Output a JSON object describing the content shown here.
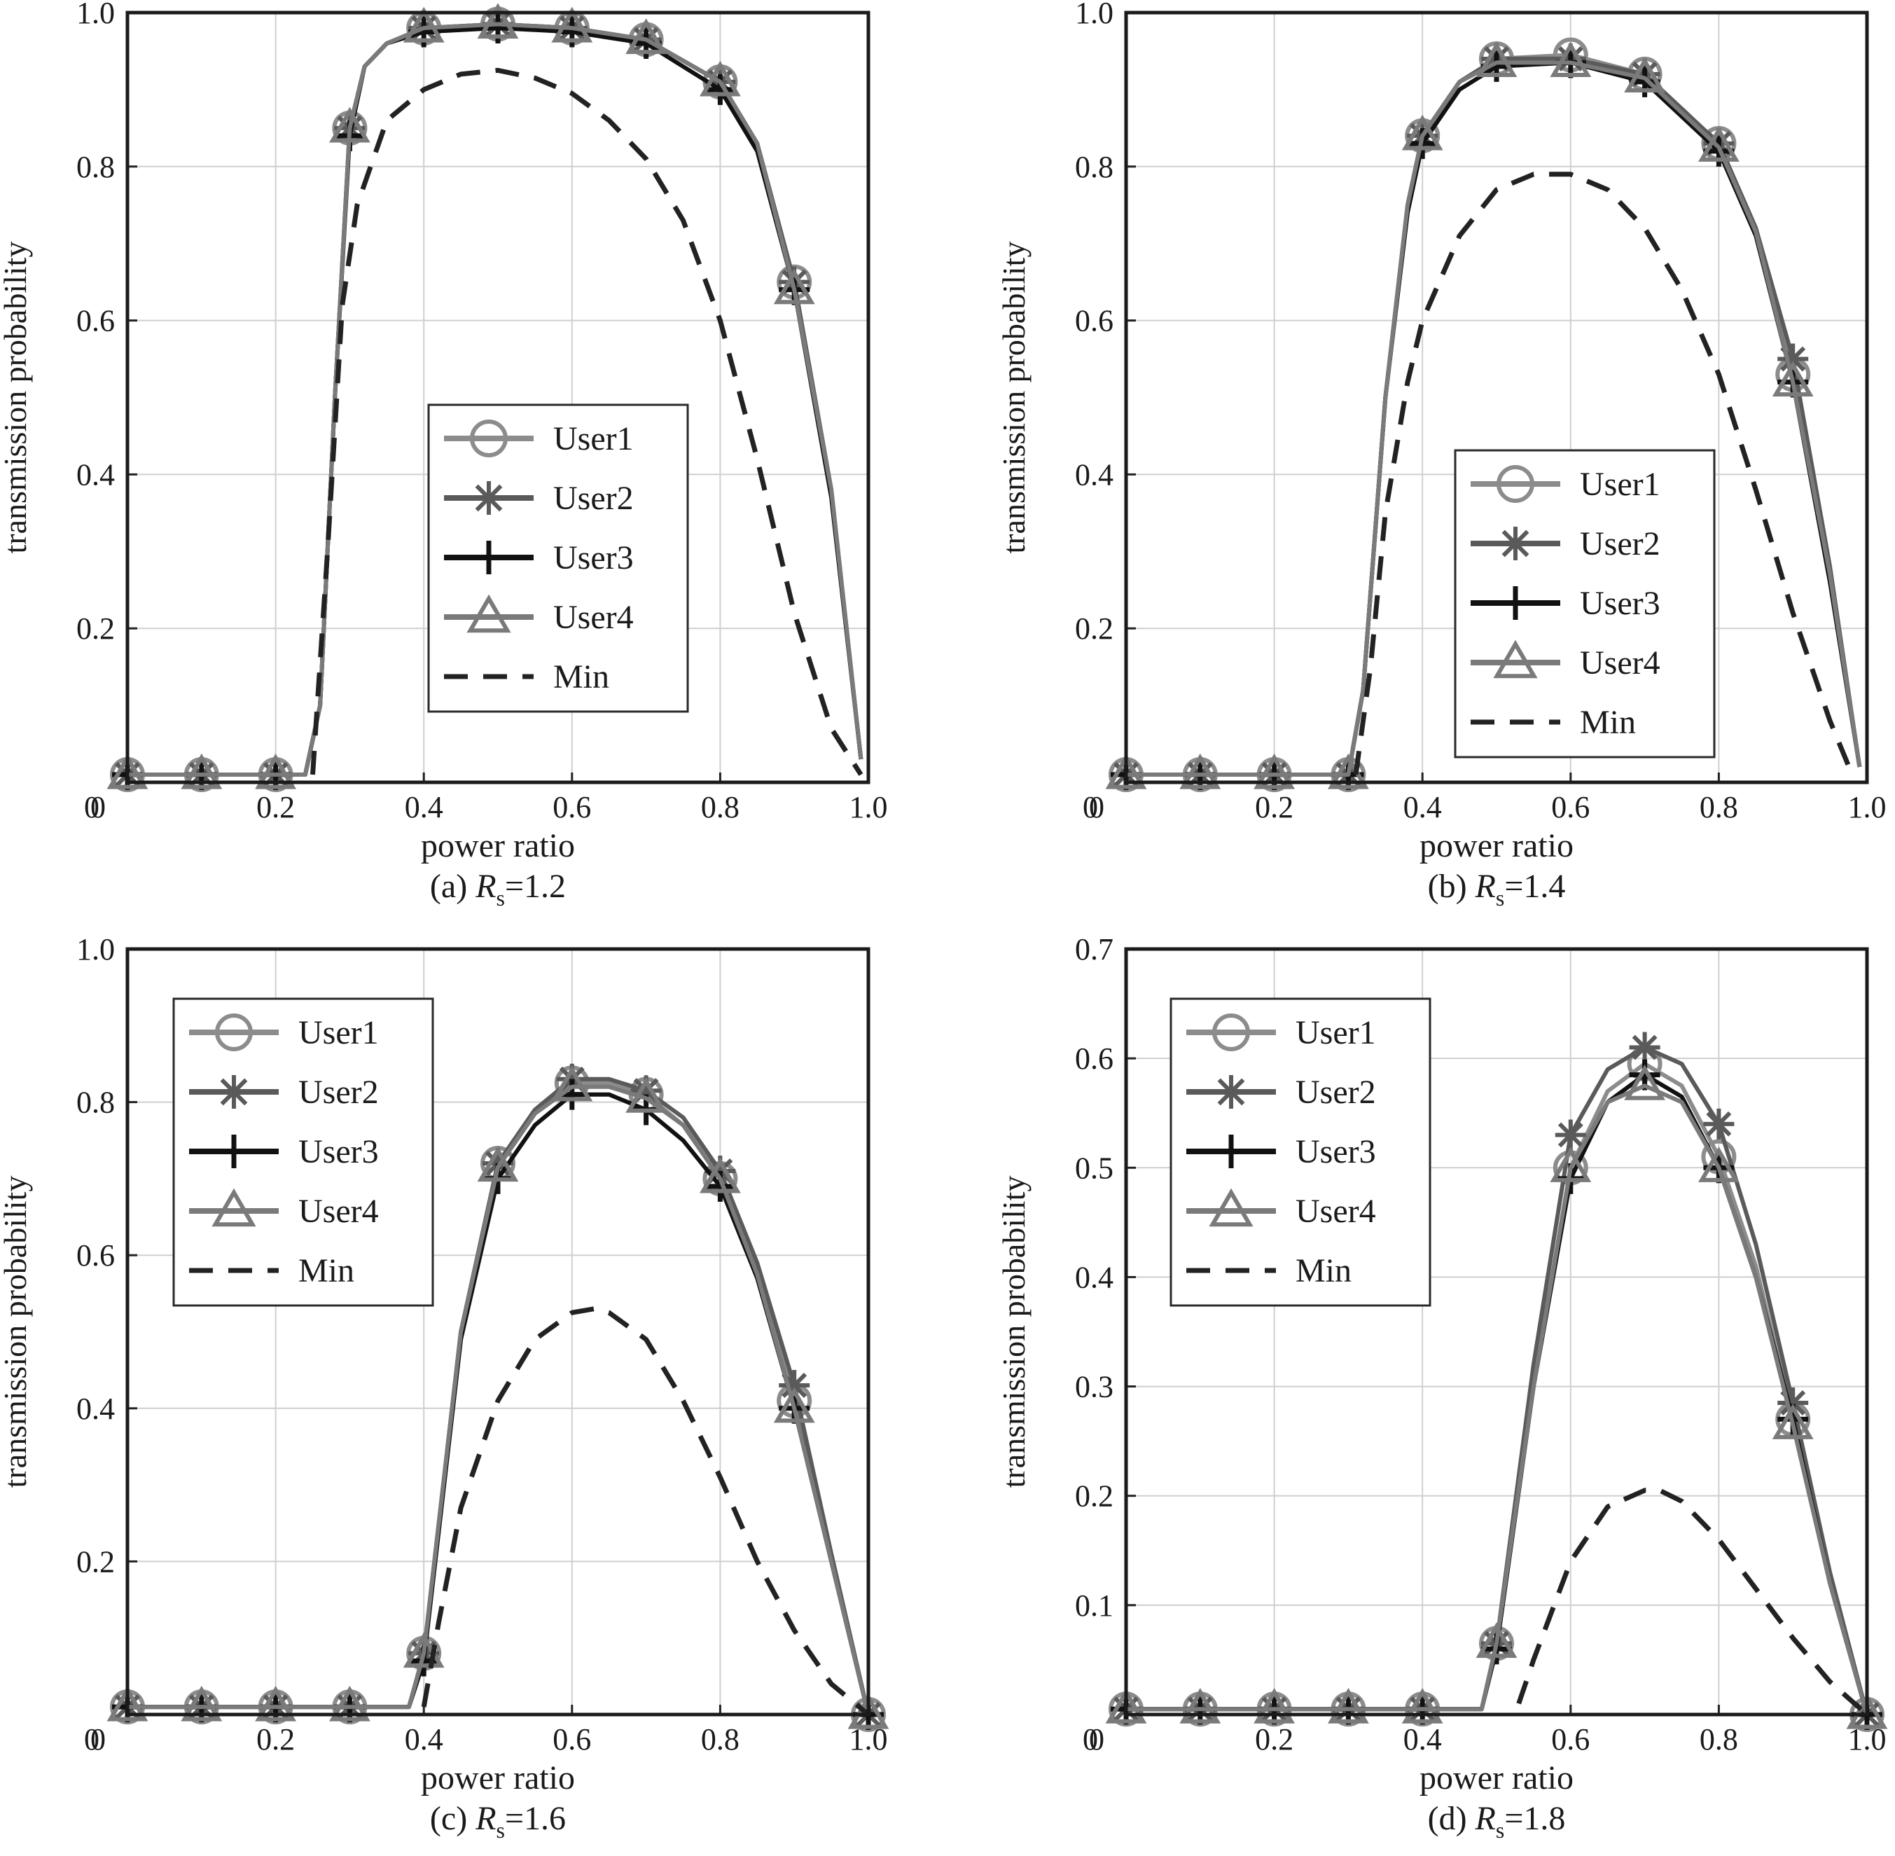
{
  "chart_data": [
    {
      "type": "line",
      "caption_prefix": "(a) ",
      "caption_var": "R",
      "caption_sub": "s",
      "caption_value": "=1.2",
      "xlabel": "power ratio",
      "ylabel": "transmission probability",
      "xlim": [
        0,
        1
      ],
      "ylim": [
        0,
        1
      ],
      "xticks": [
        "0",
        "0.2",
        "0.4",
        "0.6",
        "0.8",
        "1.0"
      ],
      "yticks": [
        "0",
        "0.2",
        "0.4",
        "0.6",
        "0.8",
        "1.0"
      ],
      "grid": true,
      "legend_position": "center",
      "x": [
        0,
        0.1,
        0.2,
        0.24,
        0.26,
        0.28,
        0.3,
        0.32,
        0.35,
        0.4,
        0.5,
        0.6,
        0.7,
        0.8,
        0.85,
        0.9,
        0.95,
        0.99
      ],
      "series": [
        {
          "name": "User1",
          "marker": "circle",
          "color": "#8c8c8c",
          "values": [
            0.01,
            0.01,
            0.01,
            0.01,
            0.1,
            0.5,
            0.85,
            0.93,
            0.96,
            0.98,
            0.985,
            0.98,
            0.965,
            0.91,
            0.83,
            0.65,
            0.38,
            0.03
          ]
        },
        {
          "name": "User2",
          "marker": "star",
          "color": "#5a5a5a",
          "values": [
            0.01,
            0.01,
            0.01,
            0.01,
            0.1,
            0.5,
            0.85,
            0.93,
            0.96,
            0.98,
            0.985,
            0.98,
            0.965,
            0.91,
            0.83,
            0.65,
            0.38,
            0.03
          ]
        },
        {
          "name": "User3",
          "marker": "plus",
          "color": "#111111",
          "values": [
            0.01,
            0.01,
            0.01,
            0.01,
            0.1,
            0.5,
            0.84,
            0.93,
            0.96,
            0.975,
            0.98,
            0.975,
            0.96,
            0.9,
            0.82,
            0.64,
            0.37,
            0.03
          ]
        },
        {
          "name": "User4",
          "marker": "triangle",
          "color": "#7a7a7a",
          "values": [
            0.01,
            0.01,
            0.01,
            0.01,
            0.1,
            0.5,
            0.85,
            0.93,
            0.96,
            0.98,
            0.985,
            0.98,
            0.965,
            0.91,
            0.83,
            0.64,
            0.38,
            0.03
          ]
        },
        {
          "name": "Min",
          "marker": "none",
          "dashed": true,
          "color": "#222222",
          "x": [
            0.25,
            0.27,
            0.29,
            0.31,
            0.35,
            0.4,
            0.45,
            0.5,
            0.55,
            0.6,
            0.65,
            0.7,
            0.75,
            0.8,
            0.85,
            0.9,
            0.95,
            0.99
          ],
          "values": [
            0.01,
            0.3,
            0.62,
            0.75,
            0.86,
            0.9,
            0.92,
            0.925,
            0.915,
            0.895,
            0.86,
            0.81,
            0.73,
            0.6,
            0.42,
            0.22,
            0.07,
            0.01
          ]
        }
      ]
    },
    {
      "type": "line",
      "caption_prefix": "(b) ",
      "caption_var": "R",
      "caption_sub": "s",
      "caption_value": "=1.4",
      "xlabel": "power ratio",
      "ylabel": "transmission probability",
      "xlim": [
        0,
        1
      ],
      "ylim": [
        0,
        1
      ],
      "xticks": [
        "0",
        "0.2",
        "0.4",
        "0.6",
        "0.8",
        "1.0"
      ],
      "yticks": [
        "0",
        "0.2",
        "0.4",
        "0.6",
        "0.8",
        "1.0"
      ],
      "grid": true,
      "legend_position": "lower center",
      "x": [
        0,
        0.1,
        0.2,
        0.3,
        0.32,
        0.35,
        0.38,
        0.4,
        0.45,
        0.5,
        0.6,
        0.7,
        0.8,
        0.85,
        0.9,
        0.95,
        0.99
      ],
      "series": [
        {
          "name": "User1",
          "marker": "circle",
          "color": "#8c8c8c",
          "values": [
            0.01,
            0.01,
            0.01,
            0.01,
            0.12,
            0.5,
            0.75,
            0.84,
            0.91,
            0.94,
            0.945,
            0.92,
            0.83,
            0.72,
            0.53,
            0.27,
            0.02
          ]
        },
        {
          "name": "User2",
          "marker": "star",
          "color": "#5a5a5a",
          "values": [
            0.01,
            0.01,
            0.01,
            0.01,
            0.12,
            0.5,
            0.75,
            0.84,
            0.91,
            0.94,
            0.94,
            0.92,
            0.83,
            0.72,
            0.55,
            0.28,
            0.02
          ]
        },
        {
          "name": "User3",
          "marker": "plus",
          "color": "#111111",
          "values": [
            0.01,
            0.01,
            0.01,
            0.01,
            0.12,
            0.5,
            0.74,
            0.83,
            0.9,
            0.93,
            0.935,
            0.91,
            0.82,
            0.71,
            0.52,
            0.26,
            0.02
          ]
        },
        {
          "name": "User4",
          "marker": "triangle",
          "color": "#7a7a7a",
          "values": [
            0.01,
            0.01,
            0.01,
            0.01,
            0.12,
            0.5,
            0.75,
            0.84,
            0.91,
            0.935,
            0.935,
            0.915,
            0.825,
            0.715,
            0.52,
            0.27,
            0.02
          ]
        },
        {
          "name": "Min",
          "marker": "none",
          "dashed": true,
          "color": "#222222",
          "x": [
            0.31,
            0.33,
            0.35,
            0.38,
            0.4,
            0.45,
            0.5,
            0.55,
            0.6,
            0.65,
            0.7,
            0.75,
            0.8,
            0.85,
            0.9,
            0.95,
            0.98
          ],
          "values": [
            0.01,
            0.15,
            0.35,
            0.52,
            0.6,
            0.71,
            0.77,
            0.79,
            0.79,
            0.77,
            0.72,
            0.64,
            0.53,
            0.38,
            0.22,
            0.08,
            0.01
          ]
        }
      ]
    },
    {
      "type": "line",
      "caption_prefix": "(c) ",
      "caption_var": "R",
      "caption_sub": "s",
      "caption_value": "=1.6",
      "xlabel": "power ratio",
      "ylabel": "transmission probability",
      "xlim": [
        0,
        1
      ],
      "ylim": [
        0,
        1
      ],
      "xticks": [
        "0",
        "0.2",
        "0.4",
        "0.6",
        "0.8",
        "1.0"
      ],
      "yticks": [
        "0",
        "0.2",
        "0.4",
        "0.6",
        "0.8",
        "1.0"
      ],
      "grid": true,
      "legend_position": "upper left",
      "x": [
        0,
        0.1,
        0.2,
        0.3,
        0.38,
        0.4,
        0.45,
        0.5,
        0.55,
        0.6,
        0.65,
        0.7,
        0.75,
        0.8,
        0.85,
        0.9,
        0.95,
        1.0
      ],
      "series": [
        {
          "name": "User1",
          "marker": "circle",
          "color": "#8c8c8c",
          "values": [
            0.01,
            0.01,
            0.01,
            0.01,
            0.01,
            0.08,
            0.5,
            0.72,
            0.79,
            0.825,
            0.825,
            0.81,
            0.77,
            0.7,
            0.58,
            0.41,
            0.2,
            0.0
          ]
        },
        {
          "name": "User2",
          "marker": "star",
          "color": "#5a5a5a",
          "values": [
            0.01,
            0.01,
            0.01,
            0.01,
            0.01,
            0.08,
            0.5,
            0.72,
            0.79,
            0.83,
            0.83,
            0.815,
            0.78,
            0.71,
            0.59,
            0.43,
            0.21,
            0.0
          ]
        },
        {
          "name": "User3",
          "marker": "plus",
          "color": "#111111",
          "values": [
            0.01,
            0.01,
            0.01,
            0.01,
            0.01,
            0.07,
            0.49,
            0.7,
            0.77,
            0.81,
            0.81,
            0.79,
            0.75,
            0.69,
            0.57,
            0.4,
            0.2,
            0.0
          ]
        },
        {
          "name": "User4",
          "marker": "triangle",
          "color": "#7a7a7a",
          "values": [
            0.01,
            0.01,
            0.01,
            0.01,
            0.01,
            0.08,
            0.5,
            0.715,
            0.785,
            0.82,
            0.82,
            0.805,
            0.77,
            0.7,
            0.575,
            0.4,
            0.2,
            0.0
          ]
        },
        {
          "name": "Min",
          "marker": "none",
          "dashed": true,
          "color": "#222222",
          "x": [
            0.4,
            0.42,
            0.45,
            0.5,
            0.55,
            0.6,
            0.63,
            0.65,
            0.7,
            0.75,
            0.8,
            0.85,
            0.9,
            0.95,
            1.0
          ],
          "values": [
            0.01,
            0.12,
            0.27,
            0.41,
            0.49,
            0.525,
            0.53,
            0.525,
            0.49,
            0.41,
            0.31,
            0.2,
            0.11,
            0.04,
            0.0
          ]
        }
      ]
    },
    {
      "type": "line",
      "caption_prefix": "(d) ",
      "caption_var": "R",
      "caption_sub": "s",
      "caption_value": "=1.8",
      "xlabel": "power ratio",
      "ylabel": "transmission probability",
      "xlim": [
        0,
        1
      ],
      "ylim": [
        0,
        0.7
      ],
      "xticks": [
        "0",
        "0.2",
        "0.4",
        "0.6",
        "0.8",
        "1.0"
      ],
      "yticks": [
        "0",
        "0.1",
        "0.2",
        "0.3",
        "0.4",
        "0.5",
        "0.6",
        "0.7"
      ],
      "grid": true,
      "legend_position": "upper left",
      "x": [
        0,
        0.1,
        0.2,
        0.3,
        0.4,
        0.48,
        0.5,
        0.55,
        0.6,
        0.65,
        0.7,
        0.75,
        0.8,
        0.85,
        0.9,
        0.95,
        1.0
      ],
      "series": [
        {
          "name": "User1",
          "marker": "circle",
          "color": "#8c8c8c",
          "values": [
            0.005,
            0.005,
            0.005,
            0.005,
            0.005,
            0.005,
            0.065,
            0.3,
            0.5,
            0.57,
            0.595,
            0.575,
            0.51,
            0.41,
            0.27,
            0.12,
            0.0
          ]
        },
        {
          "name": "User2",
          "marker": "star",
          "color": "#5a5a5a",
          "values": [
            0.005,
            0.005,
            0.005,
            0.005,
            0.005,
            0.005,
            0.065,
            0.32,
            0.53,
            0.59,
            0.61,
            0.595,
            0.54,
            0.43,
            0.285,
            0.13,
            0.0
          ]
        },
        {
          "name": "User3",
          "marker": "plus",
          "color": "#111111",
          "values": [
            0.005,
            0.005,
            0.005,
            0.005,
            0.005,
            0.005,
            0.06,
            0.3,
            0.49,
            0.56,
            0.585,
            0.565,
            0.5,
            0.4,
            0.27,
            0.12,
            0.0
          ]
        },
        {
          "name": "User4",
          "marker": "triangle",
          "color": "#7a7a7a",
          "values": [
            0.005,
            0.005,
            0.005,
            0.005,
            0.005,
            0.005,
            0.065,
            0.3,
            0.5,
            0.56,
            0.575,
            0.56,
            0.5,
            0.4,
            0.265,
            0.12,
            0.0
          ]
        },
        {
          "name": "Min",
          "marker": "none",
          "dashed": true,
          "color": "#222222",
          "x": [
            0.53,
            0.55,
            0.6,
            0.65,
            0.7,
            0.72,
            0.75,
            0.8,
            0.85,
            0.9,
            0.95,
            1.0
          ],
          "values": [
            0.01,
            0.05,
            0.14,
            0.19,
            0.205,
            0.205,
            0.195,
            0.16,
            0.115,
            0.07,
            0.03,
            0.0
          ]
        }
      ]
    }
  ]
}
